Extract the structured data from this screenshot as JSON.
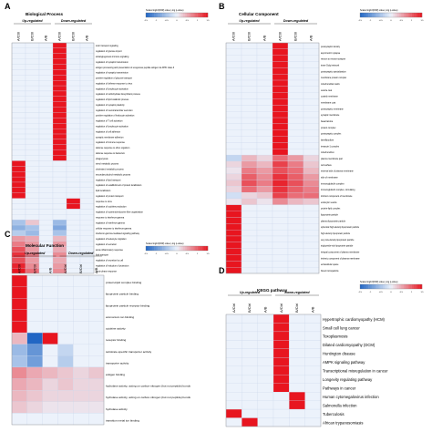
{
  "chart_data": [
    {
      "type": "heatmap",
      "panel": "A",
      "title": "Biological Process",
      "groups": [
        "Up-regulated",
        "Down-regulated"
      ],
      "columns": [
        "A/Ctrl",
        "B/Ctrl",
        "A/B",
        "A/Ctrl",
        "B/Ctrl",
        "A/B"
      ],
      "legend": {
        "title": "Scaled log10(FDR) value (-log p-value)",
        "ticks": [
          "-1.5",
          "-1",
          "-0.5",
          "0",
          "0.5",
          "1",
          "1.5"
        ],
        "range": [
          -1.5,
          1.5
        ]
      },
      "rows": [
        "toxin transport signaling",
        "regulation of glucose import",
        "antiangiogenesis immune signaling",
        "regulation of synaptic transmission",
        "antigen processing and presentation of exogenous peptide antigen via MHC class II",
        "regulation of synaptic transmission",
        "positive regulation of glucose transport",
        "regulation of defense response to virus",
        "regulation of lymphocyte activation",
        "regulation of carbohydrate biosynthetic process",
        "regulation of lipid catabolic process",
        "regulation of synaptic plasticity",
        "regulation of neurotransmitter secretion",
        "positive regulation of leukocyte activation",
        "regulation of T cell activation",
        "regulation of lymphocyte activation",
        "regulation of cell adhesion",
        "synaptic membrane adhesion",
        "regulation of immune response",
        "defense response to other organism",
        "defense response to bacterium",
        "phagocytosis",
        "sterol metabolic process",
        "cholesterol metabolic process",
        "secondary alcohol metabolic process",
        "regulation of lipid transport",
        "regulation of establishment of protein localization",
        "lipid localization",
        "regulation of protein transport",
        "response to virus",
        "regulation of cytokine production",
        "regulation of systemic/endocrine fiber organization",
        "response to interferon-gamma",
        "regulation of interferon-gamma",
        "cellular response to interferon-gamma",
        "interferon-gamma-mediated signaling pathway",
        "regulation of leukocyte migration",
        "regulation of secretion",
        "acute inflammatory response",
        "lipid transport",
        "regulation of secretion by cell",
        "regulation of induction of protection",
        "acute phase response"
      ],
      "values": [
        [
          0,
          0,
          0,
          1.5,
          0,
          0
        ],
        [
          0,
          0,
          0,
          1.5,
          0,
          0
        ],
        [
          0,
          0,
          0,
          1.5,
          0,
          0
        ],
        [
          0,
          0,
          0,
          1.5,
          0,
          0
        ],
        [
          0,
          0,
          0,
          1.5,
          0,
          0
        ],
        [
          0,
          0,
          0,
          1.5,
          0,
          0
        ],
        [
          0,
          0,
          0,
          1.5,
          0,
          0
        ],
        [
          0,
          0,
          0,
          1.5,
          0,
          0
        ],
        [
          0,
          0,
          0,
          1.5,
          0,
          0
        ],
        [
          0,
          0,
          0,
          1.5,
          0,
          0
        ],
        [
          0,
          0,
          0,
          1.5,
          0,
          0
        ],
        [
          0,
          0,
          0,
          1.5,
          0,
          0
        ],
        [
          0,
          0,
          0,
          1.5,
          0,
          0
        ],
        [
          0,
          0,
          0,
          1.5,
          0,
          0
        ],
        [
          0,
          0,
          0,
          1.5,
          0,
          0
        ],
        [
          0,
          0,
          0,
          1.5,
          0,
          0
        ],
        [
          0,
          0,
          0,
          1.5,
          0,
          0
        ],
        [
          0,
          0,
          0,
          1.5,
          0,
          0
        ],
        [
          0,
          0,
          0,
          1.5,
          0,
          0
        ],
        [
          0,
          0,
          0,
          1.5,
          0,
          0
        ],
        [
          0,
          0,
          0,
          1.5,
          0,
          0
        ],
        [
          0,
          0,
          0,
          1.5,
          0,
          0
        ],
        [
          1.5,
          0,
          0,
          0,
          0,
          0
        ],
        [
          1.5,
          0,
          0,
          0,
          0,
          0
        ],
        [
          1.5,
          0,
          0,
          0,
          0,
          0
        ],
        [
          1.5,
          0,
          0,
          0,
          0,
          0
        ],
        [
          1.5,
          0,
          0,
          0,
          0,
          0
        ],
        [
          1.5,
          0,
          0,
          0,
          0,
          0
        ],
        [
          1.5,
          0,
          0,
          0,
          0,
          0
        ],
        [
          0,
          0,
          0,
          0,
          1.5,
          0
        ],
        [
          0,
          0,
          0,
          0,
          1.5,
          0
        ],
        [
          0,
          0,
          0,
          0,
          0,
          0
        ],
        [
          0,
          0,
          0,
          0,
          0,
          0
        ],
        [
          -0.5,
          0.3,
          0,
          -0.6,
          0,
          0
        ],
        [
          -0.7,
          -0.5,
          0,
          -0.8,
          0,
          0
        ],
        [
          -0.4,
          -0.6,
          0,
          -0.5,
          0,
          0
        ],
        [
          0.6,
          0.5,
          0,
          0.4,
          0,
          0
        ],
        [
          0.8,
          0.6,
          0,
          0.6,
          0,
          0
        ],
        [
          1.1,
          0.6,
          0,
          0.5,
          0,
          0
        ],
        [
          1.3,
          0.8,
          0,
          0.7,
          0,
          0
        ],
        [
          1.1,
          0.6,
          0,
          0.5,
          0,
          0
        ],
        [
          1.4,
          0.7,
          0,
          0.6,
          0,
          0
        ],
        [
          1.5,
          0.9,
          0,
          0.7,
          0,
          0
        ]
      ]
    },
    {
      "type": "heatmap",
      "panel": "B",
      "title": "Cellular Component",
      "groups": [
        "Up-regulated",
        "Down-regulated"
      ],
      "columns": [
        "A/Ctrl",
        "B/Ctrl",
        "A/B",
        "A/Ctrl",
        "B/Ctrl",
        "A/B"
      ],
      "legend": {
        "title": "Scaled log10(FDR) value (-log p-value)",
        "ticks": [
          "-1.5",
          "-1",
          "-0.5",
          "0",
          "0.5",
          "1",
          "1.5"
        ],
        "range": [
          -1.5,
          1.5
        ]
      },
      "rows": [
        "postsynaptic density",
        "asymmetric synapse",
        "neuron to neuron synapse",
        "trans-Golgi network",
        "postsynaptic specialization",
        "membrane protein complex",
        "mitochondrial matrix",
        "vesicle coat",
        "coated membrane",
        "membrane coat",
        "postsynaptic membrane",
        "synaptic membrane",
        "basal lamina",
        "protein complex",
        "postsynaptic complex",
        "lamellipodium",
        "tenascin-1 complex",
        "mitochondrion",
        "plasma membrane part",
        "cell surface",
        "external side of plasma membrane",
        "side of membrane",
        "immunoglobulin complex",
        "immunoglobulin complex, circulating",
        "intrinsic component of membrane",
        "endocytic vesicle",
        "protein-lipid complex",
        "lipoprotein particle",
        "plasma lipoprotein particle",
        "spherical high-density lipoprotein particle",
        "high-density lipoprotein particle",
        "very-low-density lipoprotein particle",
        "triglyceride-rich lipoprotein particle",
        "integral component of plasma membrane",
        "intrinsic component of plasma membrane",
        "extracellular space",
        "blood microparticle"
      ],
      "values": [
        [
          0,
          0,
          0,
          1.5,
          0,
          0
        ],
        [
          0,
          0,
          0,
          1.5,
          0,
          0
        ],
        [
          0,
          0,
          0,
          1.5,
          0,
          0
        ],
        [
          0,
          0,
          0,
          1.5,
          0,
          0
        ],
        [
          0,
          0,
          0,
          1.5,
          0,
          0
        ],
        [
          0,
          0,
          0,
          1.5,
          0,
          0
        ],
        [
          0,
          0,
          0,
          1.5,
          0,
          0
        ],
        [
          0,
          0,
          0,
          1.5,
          0,
          0
        ],
        [
          0,
          0,
          0,
          1.5,
          0,
          0
        ],
        [
          0,
          0,
          0,
          1.5,
          0,
          0
        ],
        [
          0,
          0,
          0,
          1.5,
          0,
          0
        ],
        [
          0,
          0,
          0,
          1.5,
          0,
          0
        ],
        [
          0,
          0,
          0,
          1.5,
          0,
          0
        ],
        [
          0,
          0,
          0,
          1.5,
          0,
          0
        ],
        [
          0,
          0,
          0,
          1.5,
          0,
          0
        ],
        [
          0,
          0,
          0,
          1.5,
          0,
          0
        ],
        [
          0,
          0,
          0,
          1.5,
          0,
          0
        ],
        [
          0,
          0,
          0,
          1.5,
          0,
          0
        ],
        [
          -0.3,
          0.4,
          0.2,
          0.9,
          0.6,
          0.2
        ],
        [
          0.2,
          0.6,
          0.4,
          1.2,
          0.8,
          0.3
        ],
        [
          0.1,
          0.8,
          0.6,
          1.1,
          0.9,
          0.4
        ],
        [
          0.2,
          1.0,
          0.7,
          1.3,
          1.0,
          0.6
        ],
        [
          0.3,
          1.1,
          0.8,
          1.4,
          1.1,
          0.7
        ],
        [
          0.2,
          0.9,
          0.6,
          1.3,
          1.0,
          0.8
        ],
        [
          -0.2,
          0.2,
          0.3,
          1.2,
          0.9,
          0.9
        ],
        [
          0.1,
          0.3,
          0.1,
          0.7,
          0.4,
          0.3
        ],
        [
          1.5,
          0,
          0,
          0,
          0,
          0
        ],
        [
          1.5,
          0,
          0,
          0,
          0,
          0
        ],
        [
          1.5,
          0,
          0,
          0,
          0,
          0
        ],
        [
          1.5,
          0,
          0,
          0,
          0,
          0
        ],
        [
          1.5,
          0,
          0,
          0,
          0,
          0
        ],
        [
          1.5,
          0,
          0,
          0,
          0,
          0
        ],
        [
          1.5,
          0,
          0,
          0,
          0,
          0
        ],
        [
          1.5,
          0,
          0,
          0,
          0,
          0
        ],
        [
          1.5,
          0,
          0,
          0,
          0,
          0
        ],
        [
          1.5,
          0,
          0,
          0,
          0,
          0
        ],
        [
          1.5,
          0,
          0,
          0,
          0,
          0
        ]
      ]
    },
    {
      "type": "heatmap",
      "panel": "C",
      "title": "Molecular Function",
      "groups": [
        "Up-regulated",
        "Down-regulated"
      ],
      "columns": [
        "A/Ctrl",
        "B/Ctrl",
        "A/B",
        "A/Ctrl",
        "B/Ctrl",
        "A/B"
      ],
      "legend": {
        "title": "Scaled log10(FDR) value (-log p-value)",
        "ticks": [
          "-1.5",
          "-1",
          "-0.5",
          "0",
          "0.5",
          "1",
          "1.5"
        ],
        "range": [
          -1.5,
          1.5
        ]
      },
      "rows": [
        "protein-lipid complex binding",
        "lipoprotein particle binding",
        "lipoprotein particle receptor binding",
        "ammonium ion binding",
        "cytokine activity",
        "receptor binding",
        "substrate-specific transporter activity",
        "transporter activity",
        "antigen binding",
        "hydrolase activity, acting on carbon-nitrogen (but not peptide) bonds",
        "hydrolase activity, acting on carbon-nitrogen (but not peptide) bonds",
        "hydrolase activity",
        "transition metal ion binding"
      ],
      "values": [
        [
          1.5,
          0,
          0,
          0,
          0,
          0
        ],
        [
          1.5,
          0,
          0,
          0,
          0,
          0
        ],
        [
          1.5,
          0,
          0,
          0,
          0,
          0
        ],
        [
          1.5,
          0,
          0,
          0,
          0,
          0
        ],
        [
          1.5,
          0,
          0,
          0,
          0,
          0
        ],
        [
          0.4,
          -1.5,
          1.5,
          0,
          0,
          0
        ],
        [
          -0.6,
          -1.0,
          0,
          -0.3,
          0,
          0
        ],
        [
          -0.5,
          -0.9,
          0,
          -0.4,
          0,
          0
        ],
        [
          0.7,
          0.5,
          0.4,
          0.3,
          0.2,
          0.3
        ],
        [
          0.5,
          0.4,
          0.2,
          0.3,
          0.2,
          0.2
        ],
        [
          0.4,
          0.3,
          0.2,
          0.2,
          0.2,
          0.2
        ],
        [
          0.3,
          0.2,
          0.1,
          0.1,
          0.1,
          0.1
        ],
        [
          0,
          0,
          0,
          0,
          0,
          0
        ]
      ]
    },
    {
      "type": "heatmap",
      "panel": "D",
      "title": "KEGG pathway",
      "groups": [
        "Up-regulated",
        "Down-regulated"
      ],
      "columns": [
        "A/Ctrl",
        "B/Ctrl",
        "A/B",
        "A/Ctrl",
        "B/Ctrl",
        "A/B"
      ],
      "legend": {
        "title": "Scaled log10(FDR) value (-log p-value)",
        "ticks": [
          "-1.5",
          "-1",
          "-0.5",
          "0",
          "0.5",
          "1",
          "1.5"
        ],
        "range": [
          -1.5,
          1.5
        ]
      },
      "rows": [
        "Hypertrophic cardiomyopathy (HCM)",
        "Small cell lung cancer",
        "Toxoplasmosis",
        "Dilated cardiomyopathy (DCM)",
        "Huntington disease",
        "AMPK signaling pathway",
        "Transcriptional misregulation in cancer",
        "Longevity regulating pathway",
        "Pathways in cancer",
        "Human cytomegalovirus infection",
        "Salmonella infection",
        "Tuberculosis",
        "African trypanosomiasis"
      ],
      "values": [
        [
          0,
          0,
          0,
          1.5,
          0,
          0
        ],
        [
          0,
          0,
          0,
          1.5,
          0,
          0
        ],
        [
          0,
          0,
          0,
          1.5,
          0,
          0
        ],
        [
          0,
          0,
          0,
          1.5,
          0,
          0
        ],
        [
          0,
          0,
          0,
          1.5,
          0,
          0
        ],
        [
          0,
          0,
          0,
          1.5,
          0,
          0
        ],
        [
          0,
          0,
          0,
          1.5,
          0,
          0
        ],
        [
          0,
          0,
          0,
          1.5,
          0,
          0
        ],
        [
          0,
          0,
          0,
          1.5,
          0,
          0
        ],
        [
          0,
          0,
          0,
          0,
          1.5,
          0
        ],
        [
          0,
          0,
          0,
          0,
          1.5,
          0
        ],
        [
          1.5,
          0,
          0,
          0,
          0,
          0
        ],
        [
          0,
          1.5,
          0,
          0,
          0,
          0
        ]
      ]
    }
  ],
  "colors": {
    "low": "#2166c4",
    "mid": "#ecf2fb",
    "high": "#e8151f",
    "grid": "#c9d6ea",
    "text": "#111111"
  }
}
